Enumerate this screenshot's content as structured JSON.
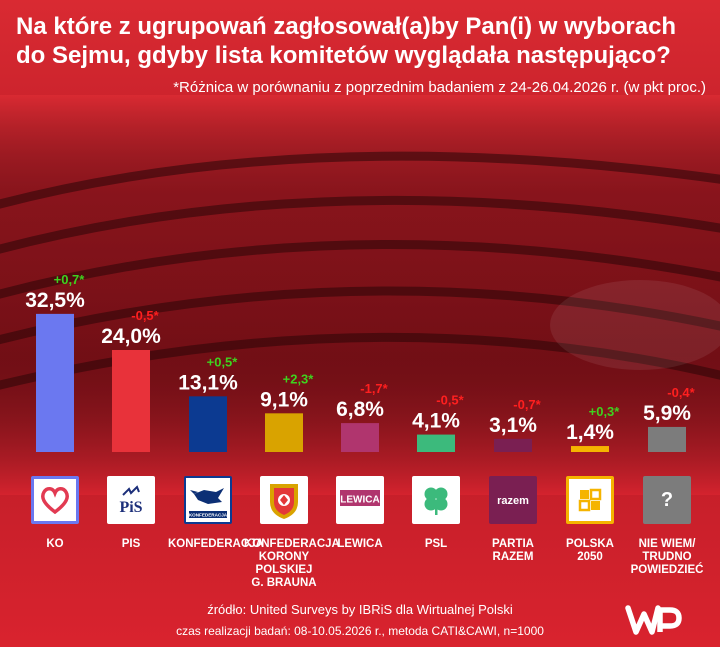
{
  "header": {
    "title": "Na które z ugrupowań zagłosował(a)by Pan(i) w wyborach do Sejmu, gdyby lista komitetów wyglądała następująco?",
    "subtitle": "*Różnica w porównaniu z poprzednim badaniem z 24-26.04.2026 r. (w pkt proc.)"
  },
  "chart_data": {
    "type": "bar",
    "title": "Na które z ugrupowań zagłosował(a)by Pan(i) w wyborach do Sejmu, gdyby lista komitetów wyglądała następująco?",
    "subtitle": "*Różnica w porównaniu z poprzednim badaniem z 24-26.04.2026 r. (w pkt proc.)",
    "categories": [
      "KO",
      "PIS",
      "KONFEDERACJA",
      "KONFEDERACJA KORONY POLSKIEJ G. BRAUNA",
      "LEWICA",
      "PSL",
      "PARTIA RAZEM",
      "POLSKA 2050",
      "NIE WIEM/ TRUDNO POWIEDZIEĆ"
    ],
    "values": [
      32.5,
      24.0,
      13.1,
      9.1,
      6.8,
      4.1,
      3.1,
      1.4,
      5.9
    ],
    "value_labels": [
      "32,5%",
      "24,0%",
      "13,1%",
      "9,1%",
      "6,8%",
      "4,1%",
      "3,1%",
      "1,4%",
      "5,9%"
    ],
    "changes": [
      0.7,
      -0.5,
      0.5,
      2.3,
      -1.7,
      -0.5,
      -0.7,
      0.3,
      -0.4
    ],
    "change_labels": [
      "+0,7*",
      "-0,5*",
      "+0,5*",
      "+2,3*",
      "-1,7*",
      "-0,5*",
      "-0,7*",
      "+0,3*",
      "-0,4*"
    ],
    "colors": [
      "#6b78f0",
      "#e8323a",
      "#0c3a91",
      "#d9a300",
      "#b0356e",
      "#3cba7c",
      "#7a1f52",
      "#f5b400",
      "#7c7c7c"
    ],
    "ylim": [
      0,
      35
    ],
    "grid": false,
    "legend": "none"
  },
  "parties": [
    {
      "name": "KO",
      "logo": "heart-icon"
    },
    {
      "name": "PIS",
      "logo": "pis-logo"
    },
    {
      "name": "KONFEDERACJA",
      "logo": "konfederacja-logo"
    },
    {
      "name": "KONFEDERACJA KORONY POLSKIEJ G. BRAUNA",
      "logo": "korona-logo"
    },
    {
      "name": "LEWICA",
      "logo": "lewica-logo"
    },
    {
      "name": "PSL",
      "logo": "clover-icon"
    },
    {
      "name": "PARTIA RAZEM",
      "logo": "razem-logo"
    },
    {
      "name": "POLSKA 2050",
      "logo": "polska2050-logo"
    },
    {
      "name": "NIE WIEM/ TRUDNO POWIEDZIEĆ",
      "logo": "question-icon"
    }
  ],
  "party_names_display": [
    [
      "KO"
    ],
    [
      "PIS"
    ],
    [
      "KONFEDERACJA"
    ],
    [
      "KONFEDERACJA",
      "KORONY",
      "POLSKIEJ",
      "G. BRAUNA"
    ],
    [
      "LEWICA"
    ],
    [
      "PSL"
    ],
    [
      "PARTIA",
      "RAZEM"
    ],
    [
      "POLSKA",
      "2050"
    ],
    [
      "NIE WIEM/",
      "TRUDNO",
      "POWIEDZIEĆ"
    ]
  ],
  "logo_text": {
    "pis": "PiS",
    "konfederacja": "KONFEDERACJA",
    "lewica": "LEWICA",
    "razem": "razem",
    "question": "?"
  },
  "colors": {
    "positive_change": "#3fd11f",
    "negative_change": "#ff1f1f",
    "background": "#d4232e"
  },
  "footer": {
    "source": "źródło: United Surveys by IBRiS dla Wirtualnej Polski",
    "method": "czas realizacji badań: 08-10.05.2026 r., metoda CATI&CAWI, n=1000"
  },
  "brand": {
    "logo": "wp-logo"
  }
}
